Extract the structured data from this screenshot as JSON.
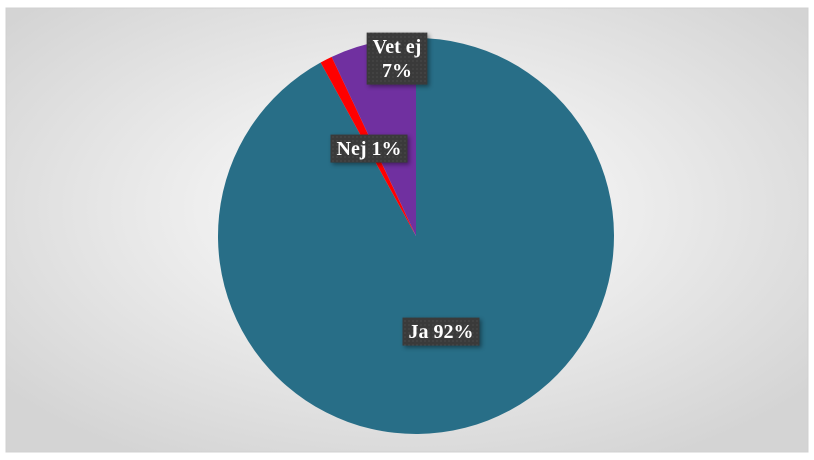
{
  "chart_data": {
    "type": "pie",
    "categories": [
      "Ja",
      "Nej",
      "Vet ej"
    ],
    "values": [
      92,
      1,
      7
    ],
    "value_labels": [
      "92%",
      "1%",
      "7%"
    ],
    "colors": [
      "#286e87",
      "#ff0000",
      "#7030a0"
    ]
  }
}
